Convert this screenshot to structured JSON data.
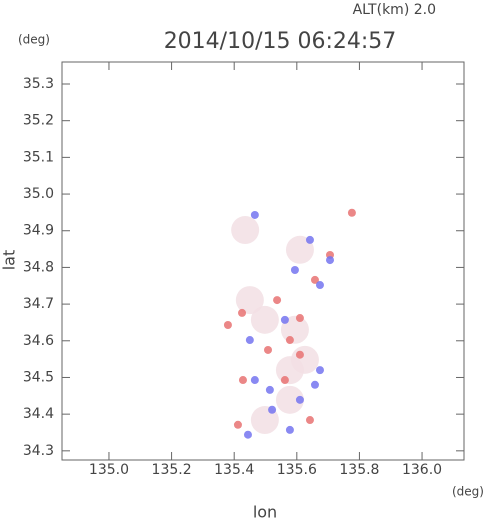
{
  "chart_data": {
    "type": "scatter",
    "title": "2014/10/15 06:24:57",
    "annotation": "ALT(km) 2.0",
    "y_unit": "(deg)",
    "x_unit": "(deg)",
    "xlabel": "lon",
    "ylabel": "lat",
    "xlim": [
      134.85,
      136.134
    ],
    "ylim": [
      34.275,
      35.36
    ],
    "xticks": [
      {
        "value": 135.0,
        "label": "135.0"
      },
      135.2,
      135.4,
      135.6,
      135.8,
      {
        "value": 136.0,
        "label": "136.0"
      }
    ],
    "yticks": [
      34.3,
      34.4,
      34.5,
      34.6,
      34.7,
      34.8,
      34.9,
      {
        "value": 35.0,
        "label": "35.0"
      },
      35.1,
      35.2,
      35.3
    ],
    "grid": false,
    "series": [
      {
        "color": "#f2dfe4",
        "x": [
          135.435,
          135.61,
          135.498,
          135.594,
          135.578,
          135.498,
          135.626,
          135.45,
          135.578
        ],
        "y": [
          34.902,
          34.848,
          34.657,
          34.63,
          34.439,
          34.384,
          34.548,
          34.711,
          34.52
        ]
      },
      {
        "color": "#e87272",
        "x": [
          135.776,
          135.425,
          135.537,
          135.508,
          135.61,
          135.412,
          135.578,
          135.706,
          135.658,
          135.428,
          135.642,
          135.562,
          135.38,
          135.61
        ],
        "y": [
          34.949,
          34.676,
          34.711,
          34.575,
          34.562,
          34.371,
          34.602,
          34.834,
          34.766,
          34.493,
          34.384,
          34.493,
          34.643,
          34.662
        ]
      },
      {
        "color": "#7474f0",
        "x": [
          135.466,
          135.642,
          135.706,
          135.674,
          135.466,
          135.514,
          135.658,
          135.521,
          135.444,
          135.61,
          135.562,
          135.45,
          135.674,
          135.594,
          135.578
        ],
        "y": [
          34.943,
          34.875,
          34.82,
          34.752,
          34.493,
          34.466,
          34.48,
          34.412,
          34.344,
          34.439,
          34.657,
          34.602,
          34.52,
          34.793,
          34.357
        ]
      }
    ]
  }
}
